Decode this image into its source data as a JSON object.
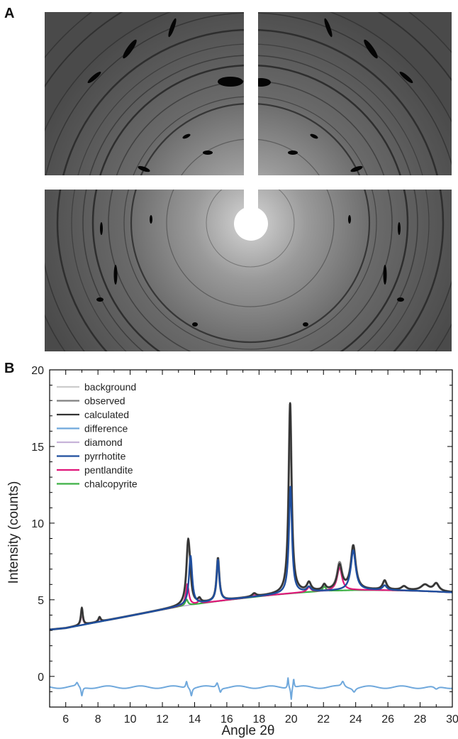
{
  "panels": {
    "a_label": "A",
    "b_label": "B"
  },
  "chart_data": {
    "type": "line",
    "xlabel": "Angle 2θ",
    "ylabel": "Intensity (counts)",
    "xlim": [
      5,
      30
    ],
    "ylim": [
      -2,
      20
    ],
    "xticks": [
      6,
      8,
      10,
      12,
      14,
      16,
      18,
      20,
      22,
      24,
      26,
      28,
      30
    ],
    "yticks": [
      0,
      5,
      10,
      15,
      20
    ],
    "grid": false,
    "legend": "top-left",
    "background": [
      [
        5,
        3.05
      ],
      [
        6,
        3.15
      ],
      [
        7,
        3.35
      ],
      [
        8,
        3.55
      ],
      [
        9,
        3.75
      ],
      [
        10,
        3.95
      ],
      [
        11,
        4.15
      ],
      [
        12,
        4.35
      ],
      [
        13,
        4.55
      ],
      [
        14,
        4.7
      ],
      [
        15,
        4.85
      ],
      [
        16,
        4.98
      ],
      [
        17,
        5.1
      ],
      [
        18,
        5.22
      ],
      [
        19,
        5.33
      ],
      [
        20,
        5.42
      ],
      [
        21,
        5.5
      ],
      [
        22,
        5.56
      ],
      [
        23,
        5.6
      ],
      [
        24,
        5.63
      ],
      [
        25,
        5.63
      ],
      [
        26,
        5.62
      ],
      [
        27,
        5.6
      ],
      [
        28,
        5.57
      ],
      [
        29,
        5.53
      ],
      [
        30,
        5.48
      ]
    ],
    "series": [
      {
        "name": "background",
        "color": "#cccccc",
        "peaks": []
      },
      {
        "name": "observed",
        "color": "#7f7f7f",
        "peaks": [
          [
            7.0,
            1.1,
            0.07
          ],
          [
            8.1,
            0.3,
            0.08
          ],
          [
            13.6,
            4.0,
            0.13
          ],
          [
            13.72,
            0.8,
            0.08
          ],
          [
            14.3,
            0.25,
            0.1
          ],
          [
            15.45,
            2.8,
            0.1
          ],
          [
            17.7,
            0.2,
            0.15
          ],
          [
            19.93,
            12.4,
            0.11
          ],
          [
            21.1,
            0.55,
            0.15
          ],
          [
            22.05,
            0.35,
            0.12
          ],
          [
            23.0,
            1.7,
            0.18
          ],
          [
            23.85,
            2.85,
            0.18
          ],
          [
            25.8,
            0.6,
            0.15
          ],
          [
            27.0,
            0.25,
            0.2
          ],
          [
            28.3,
            0.4,
            0.3
          ],
          [
            29.0,
            0.5,
            0.2
          ]
        ]
      },
      {
        "name": "calculated",
        "color": "#333333",
        "peaks": [
          [
            7.0,
            1.15,
            0.07
          ],
          [
            8.1,
            0.3,
            0.08
          ],
          [
            13.6,
            4.1,
            0.13
          ],
          [
            13.72,
            0.8,
            0.08
          ],
          [
            14.3,
            0.25,
            0.1
          ],
          [
            15.45,
            2.8,
            0.1
          ],
          [
            17.7,
            0.2,
            0.15
          ],
          [
            19.93,
            12.5,
            0.11
          ],
          [
            21.1,
            0.55,
            0.15
          ],
          [
            22.05,
            0.35,
            0.12
          ],
          [
            23.0,
            1.6,
            0.18
          ],
          [
            23.85,
            2.85,
            0.18
          ],
          [
            25.8,
            0.6,
            0.15
          ],
          [
            27.0,
            0.25,
            0.2
          ],
          [
            28.3,
            0.4,
            0.3
          ],
          [
            29.0,
            0.5,
            0.2
          ]
        ]
      },
      {
        "name": "difference",
        "color": "#6fa8dc",
        "baseline": -0.7,
        "peaks": [
          [
            7.0,
            -0.6,
            0.06
          ],
          [
            6.7,
            0.25,
            0.08
          ],
          [
            13.5,
            0.45,
            0.06
          ],
          [
            13.8,
            -0.5,
            0.06
          ],
          [
            15.4,
            0.35,
            0.08
          ],
          [
            15.6,
            -0.3,
            0.07
          ],
          [
            19.8,
            0.7,
            0.04
          ],
          [
            20.0,
            -0.8,
            0.04
          ],
          [
            20.15,
            0.6,
            0.04
          ],
          [
            23.2,
            0.35,
            0.1
          ],
          [
            23.9,
            -0.25,
            0.1
          ],
          [
            29.0,
            -0.2,
            0.15
          ]
        ]
      },
      {
        "name": "diamond",
        "color": "#c7b3d9",
        "peaks": []
      },
      {
        "name": "pyrrhotite",
        "color": "#1f4e9e",
        "peaks": [
          [
            13.75,
            3.2,
            0.12
          ],
          [
            15.45,
            2.7,
            0.1
          ],
          [
            19.95,
            7.0,
            0.11
          ],
          [
            21.1,
            0.3,
            0.15
          ],
          [
            23.85,
            2.6,
            0.18
          ],
          [
            25.8,
            0.3,
            0.15
          ]
        ]
      },
      {
        "name": "pentlandite",
        "color": "#e0177a",
        "peaks": [
          [
            7.0,
            0.8,
            0.07
          ],
          [
            8.1,
            0.2,
            0.08
          ],
          [
            13.55,
            1.4,
            0.11
          ],
          [
            14.3,
            0.2,
            0.1
          ],
          [
            17.7,
            0.15,
            0.15
          ],
          [
            21.1,
            0.3,
            0.15
          ],
          [
            23.0,
            1.5,
            0.18
          ]
        ]
      },
      {
        "name": "chalcopyrite",
        "color": "#3cb043",
        "peaks": [
          [
            13.5,
            0.4,
            0.1
          ],
          [
            22.05,
            0.3,
            0.12
          ]
        ]
      }
    ]
  }
}
